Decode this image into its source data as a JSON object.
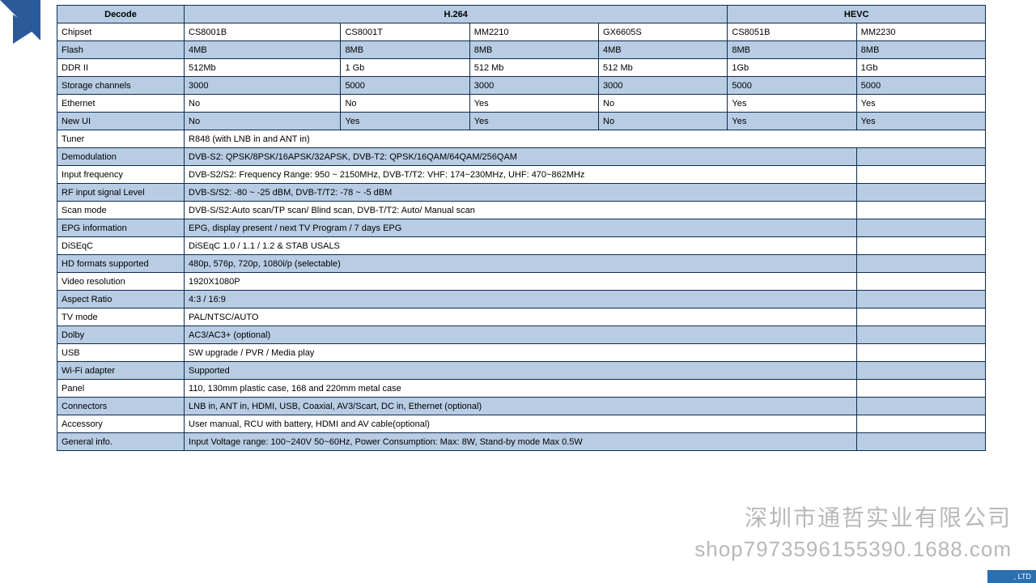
{
  "colors": {
    "header_blue": "#b8cde4",
    "border": "#0d2b4d",
    "accent": "#2a5a9a"
  },
  "hdr": {
    "decode": "Decode",
    "h264": "H.264",
    "hevc": "HEVC"
  },
  "rows": {
    "chipset": {
      "k": "Chipset",
      "c": [
        "CS8001B",
        "CS8001T",
        "MM2210",
        "GX6605S",
        "CS8051B",
        "MM2230"
      ]
    },
    "flash": {
      "k": "Flash",
      "c": [
        "4MB",
        "8MB",
        "8MB",
        "4MB",
        "8MB",
        "8MB"
      ]
    },
    "ddr": {
      "k": "DDR II",
      "c": [
        "512Mb",
        "1 Gb",
        "512 Mb",
        "512 Mb",
        "1Gb",
        "1Gb"
      ]
    },
    "storage": {
      "k": "Storage channels",
      "c": [
        "3000",
        "5000",
        "3000",
        "3000",
        "5000",
        "5000"
      ]
    },
    "ethernet": {
      "k": "Ethernet",
      "c": [
        "No",
        "No",
        "Yes",
        "No",
        "Yes",
        "Yes"
      ]
    },
    "newui": {
      "k": "New UI",
      "c": [
        "No",
        "Yes",
        "Yes",
        "No",
        "Yes",
        "Yes"
      ]
    }
  },
  "specs": [
    {
      "k": "Tuner",
      "v": "R848 (with LNB in and ANT in)",
      "span": 6,
      "blue": false
    },
    {
      "k": "Demodulation",
      "v": "DVB-S2: QPSK/8PSK/16APSK/32APSK, DVB-T2: QPSK/16QAM/64QAM/256QAM",
      "span": 5,
      "blue": true
    },
    {
      "k": "Input frequency",
      "v": "DVB-S2/S2: Frequency Range:  950 ~ 2150MHz,  DVB-T/T2: VHF: 174~230MHz, UHF: 470~862MHz",
      "span": 5,
      "blue": false
    },
    {
      "k": "RF input signal Level",
      "v": " DVB-S/S2:  -80 ~ -25 dBM, DVB-T/T2: -78 ~ -5 dBM",
      "span": 5,
      "blue": true
    },
    {
      "k": "Scan mode",
      "v": "DVB-S/S2:Auto scan/TP scan/ Blind scan, DVB-T/T2: Auto/ Manual scan",
      "span": 5,
      "blue": false
    },
    {
      "k": "EPG information",
      "v": "EPG, display present / next TV Program / 7 days EPG",
      "span": 5,
      "blue": true
    },
    {
      "k": "DiSEqC",
      "v": "DiSEqC 1.0 / 1.1 / 1.2 & STAB USALS",
      "span": 5,
      "blue": false
    },
    {
      "k": "HD formats supported",
      "v": "480p, 576p, 720p, 1080i/p (selectable)",
      "span": 5,
      "blue": true
    },
    {
      "k": "Video resolution",
      "v": "1920X1080P",
      "span": 5,
      "blue": false
    },
    {
      "k": "Aspect Ratio",
      "v": "4:3 / 16:9",
      "span": 5,
      "blue": true
    },
    {
      "k": "TV mode",
      "v": "PAL/NTSC/AUTO",
      "span": 5,
      "blue": false
    },
    {
      "k": "Dolby",
      "v": "AC3/AC3+ (optional)",
      "span": 5,
      "blue": true
    },
    {
      "k": "USB",
      "v": "SW upgrade / PVR / Media play",
      "span": 5,
      "blue": false
    },
    {
      "k": "Wi-Fi adapter",
      "v": "Supported",
      "span": 5,
      "blue": true
    },
    {
      "k": "Panel",
      "v": "110, 130mm plastic case, 168 and 220mm metal case",
      "span": 5,
      "blue": false
    },
    {
      "k": "Connectors",
      "v": "LNB in, ANT in, HDMI, USB, Coaxial, AV3/Scart, DC in, Ethernet (optional)",
      "span": 5,
      "blue": true
    },
    {
      "k": "Accessory",
      "v": "User manual, RCU with battery, HDMI and AV cable(optional)",
      "span": 5,
      "blue": false
    },
    {
      "k": "General info.",
      "v": "Input Voltage range: 100~240V 50~60Hz, Power Consumption: Max: 8W, Stand-by mode  Max 0.5W",
      "span": 5,
      "blue": true
    }
  ],
  "watermark": {
    "line1": "深圳市通哲实业有限公司",
    "line2": "shop7973596155390.1688.com"
  },
  "footer": ", LTD"
}
